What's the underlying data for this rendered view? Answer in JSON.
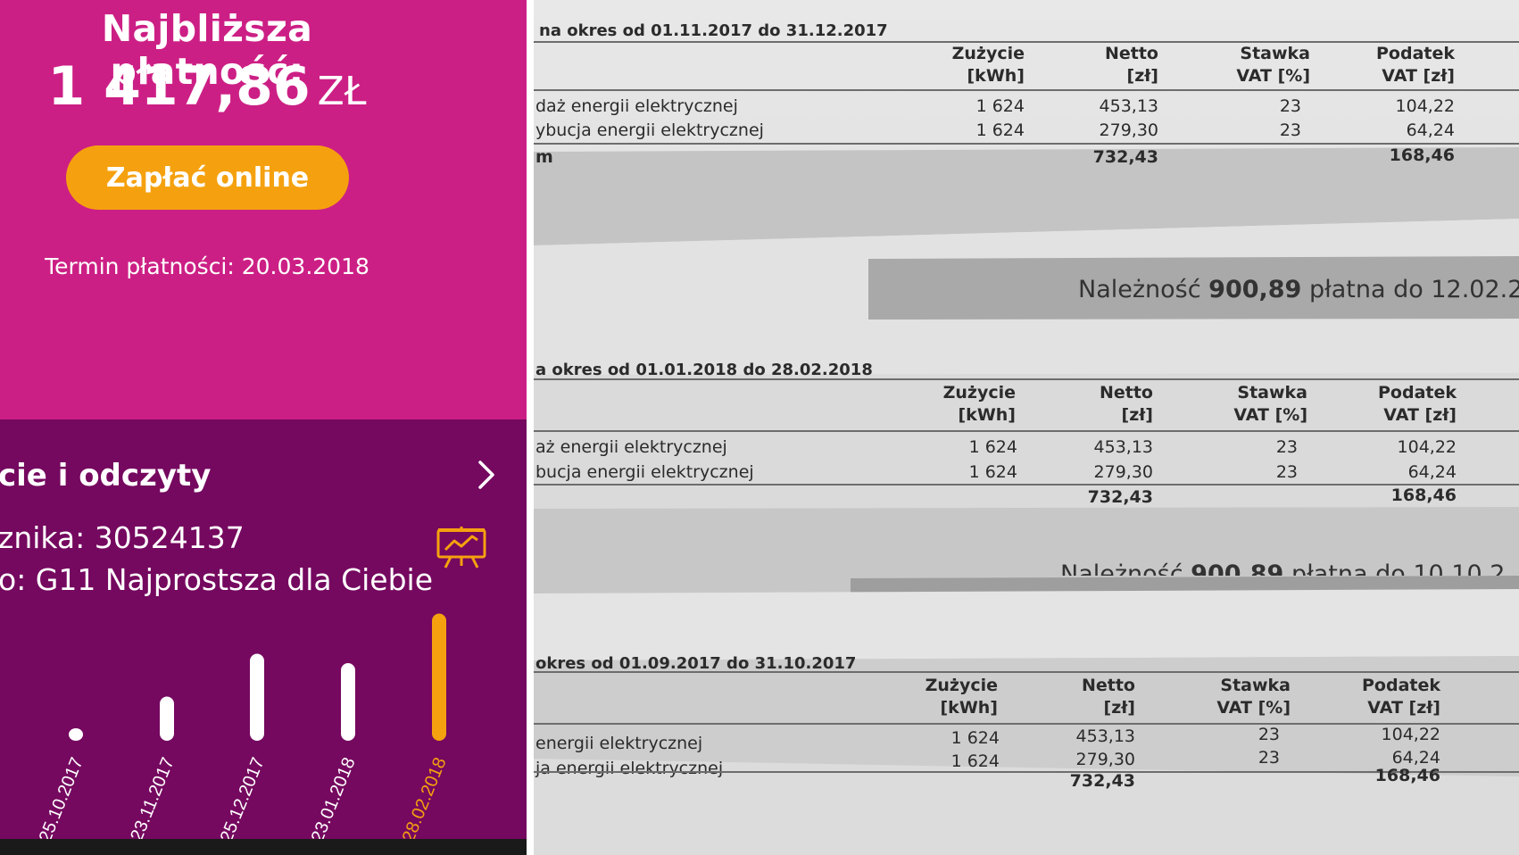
{
  "payment": {
    "title": "Najbliższa płatność:",
    "amount": "1 417,86",
    "currency": "ZŁ",
    "pay_button_label": "Zapłać online",
    "due_label": "Termin płatności: 20.03.2018",
    "panel_color": "#cc1f85",
    "button_color": "#f5a10f"
  },
  "readings": {
    "title": "cie i odczyty",
    "meter_line": "znika: 30524137",
    "tariff_line": "o: G11 Najprostsza dla Ciebie",
    "icons": [
      "chevron-right-icon",
      "presentation-chart-icon"
    ],
    "panel_color": "#75085f",
    "highlight_color": "#f5a10f"
  },
  "chart_data": {
    "type": "bar",
    "categories": [
      "25.10.2017",
      "23.11.2017",
      "25.12.2017",
      "23.01.2018",
      "28.02.2018"
    ],
    "values": [
      0.03,
      0.33,
      0.65,
      0.58,
      0.95
    ],
    "highlighted_category": "28.02.2018",
    "title": "",
    "xlabel": "",
    "ylabel": ""
  },
  "invoice": {
    "sections": [
      {
        "period": "na okres od 01.11.2017 do 31.12.2017",
        "headers": {
          "usage": [
            "Zużycie",
            "[kWh]"
          ],
          "net": [
            "Netto",
            "[zł]"
          ],
          "rate": [
            "Stawka",
            "VAT [%]"
          ],
          "tax": [
            "Podatek",
            "VAT [zł]"
          ]
        },
        "rows": [
          {
            "label": "daż energii elektrycznej",
            "usage": "1 624",
            "net": "453,13",
            "rate": "23",
            "tax": "104,22"
          },
          {
            "label": "ybucja energii elektrycznej",
            "usage": "1 624",
            "net": "279,30",
            "rate": "23",
            "tax": "64,24"
          }
        ],
        "total": {
          "label": "m",
          "net": "732,43",
          "tax": "168,46"
        },
        "due": {
          "prefix": "Należność ",
          "amount": "900,89",
          "suffix": " płatna do 12.02.2"
        }
      },
      {
        "period": "a okres od 01.01.2018 do 28.02.2018",
        "headers": {
          "usage": [
            "Zużycie",
            "[kWh]"
          ],
          "net": [
            "Netto",
            "[zł]"
          ],
          "rate": [
            "Stawka",
            "VAT [%]"
          ],
          "tax": [
            "Podatek",
            "VAT [zł]"
          ]
        },
        "rows": [
          {
            "label": "aż energii elektrycznej",
            "usage": "1 624",
            "net": "453,13",
            "rate": "23",
            "tax": "104,22"
          },
          {
            "label": "bucja energii elektrycznej",
            "usage": "1 624",
            "net": "279,30",
            "rate": "23",
            "tax": "64,24"
          }
        ],
        "total": {
          "label": "",
          "net": "732,43",
          "tax": "168,46"
        },
        "due": {
          "prefix": "Należność ",
          "amount": "900,89",
          "suffix": " płatna do 10.10.2"
        }
      },
      {
        "period": "okres od 01.09.2017 do 31.10.2017",
        "headers": {
          "usage": [
            "Zużycie",
            "[kWh]"
          ],
          "net": [
            "Netto",
            "[zł]"
          ],
          "rate": [
            "Stawka",
            "VAT [%]"
          ],
          "tax": [
            "Podatek",
            "VAT [zł]"
          ]
        },
        "rows": [
          {
            "label": "energii elektrycznej",
            "usage": "1 624",
            "net": "453,13",
            "rate": "23",
            "tax": "104,22"
          },
          {
            "label": "ja energii elektrycznej",
            "usage": "1 624",
            "net": "279,30",
            "rate": "23",
            "tax": "64,24"
          }
        ],
        "total": {
          "label": "",
          "net": "732,43",
          "tax": "168,46"
        }
      }
    ]
  }
}
